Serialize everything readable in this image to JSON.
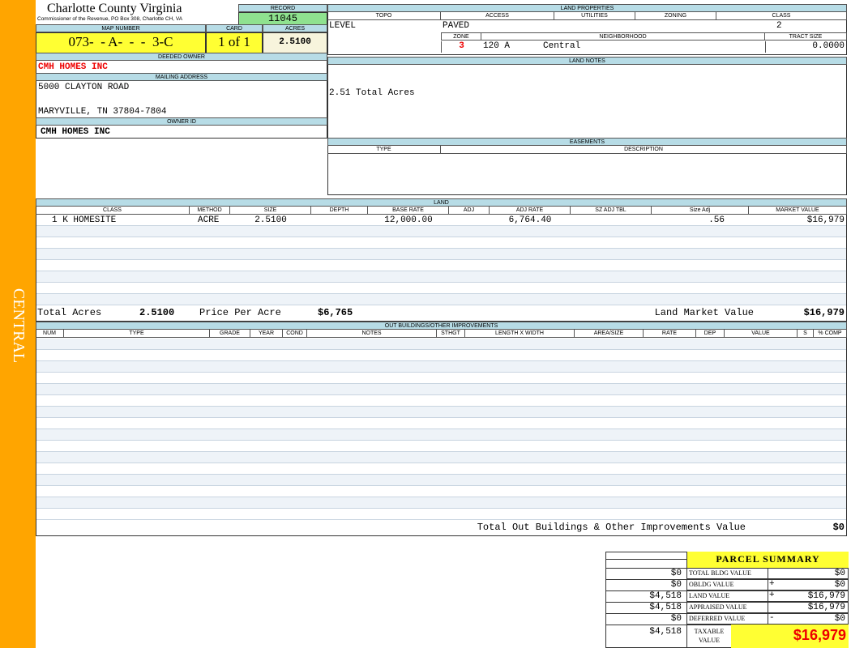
{
  "sidebar": "CENTRAL",
  "header": {
    "title": "Charlotte County Virginia",
    "subtitle": "Commissioner of the Revenue, PO Box 308, Charlotte CH, VA",
    "record_label": "RECORD",
    "record": "11045"
  },
  "parcel": {
    "map_number_label": "MAP NUMBER",
    "card_label": "CARD",
    "acres_label": "ACRES",
    "map_number": "073-  - A-  -  -  3-C",
    "card": "1 of 1",
    "acres": "2.5100"
  },
  "owner": {
    "deeded_owner_label": "DEEDED OWNER",
    "deeded_owner": "CMH HOMES INC",
    "mailing_label": "MAILING ADDRESS",
    "address_line1": "5000 CLAYTON ROAD",
    "address_line2": "MARYVILLE, TN 37804-7804",
    "owner_id_label": "OWNER ID",
    "owner_id": "CMH HOMES INC"
  },
  "land_properties": {
    "title": "LAND PROPERTIES",
    "headers": [
      "TOPO",
      "ACCESS",
      "UTILITIES",
      "ZONING",
      "CLASS"
    ],
    "topo": "LEVEL",
    "access": "PAVED",
    "class": "2",
    "zone_label": "ZONE",
    "neighborhood_label": "NEIGHBORHOOD",
    "tract_size_label": "TRACT SIZE",
    "zone": "3",
    "neighborhood_code": "120 A",
    "neighborhood": "Central",
    "tract_size": "0.0000"
  },
  "land_notes": {
    "title": "LAND NOTES",
    "text": "2.51 Total Acres"
  },
  "easements": {
    "title": "EASEMENTS",
    "headers": [
      "TYPE",
      "DESCRIPTION"
    ]
  },
  "land": {
    "title": "LAND",
    "headers": [
      "CLASS",
      "METHOD",
      "SIZE",
      "DEPTH",
      "BASE RATE",
      "ADJ",
      "ADJ RATE",
      "SZ ADJ TBL",
      "Size Adj",
      "MARKET VALUE"
    ],
    "row": {
      "class": "1 K HOMESITE",
      "method": "ACRE",
      "size": "2.5100",
      "base_rate": "12,000.00",
      "adj_rate": "6,764.40",
      "size_adj": ".56",
      "market_value": "$16,979"
    },
    "total_acres_label": "Total Acres",
    "total_acres": "2.5100",
    "price_per_acre_label": "Price Per Acre",
    "price_per_acre": "$6,765",
    "land_market_value_label": "Land Market Value",
    "land_market_value": "$16,979"
  },
  "out_buildings": {
    "title": "OUT BUILDINGS/OTHER IMPROVEMENTS",
    "headers": [
      "NUM",
      "TYPE",
      "GRADE",
      "YEAR",
      "COND",
      "NOTES",
      "STHGT",
      "LENGTH X WIDTH",
      "AREA/SIZE",
      "RATE",
      "DEP",
      "VALUE",
      "S",
      "% COMP"
    ],
    "total_label": "Total Out Buildings & Other Improvements Value",
    "total": "$0"
  },
  "parcel_summary": {
    "title": "PARCEL SUMMARY",
    "rows": [
      {
        "left": "$0",
        "label": "TOTAL BLDG VALUE",
        "value": "$0"
      },
      {
        "left": "$0",
        "label": "OBLDG VALUE",
        "op": "+",
        "value": "$0"
      },
      {
        "left": "$4,518",
        "label": "LAND VALUE",
        "op": "+",
        "value": "$16,979"
      },
      {
        "left": "$4,518",
        "label": "APPRAISED VALUE",
        "value": "$16,979"
      },
      {
        "left": "$0",
        "label": "DEFERRED VALUE",
        "op": "-",
        "value": "$0"
      }
    ],
    "taxable_left": "$4,518",
    "taxable_label": "TAXABLE VALUE",
    "taxable": "$16,979"
  }
}
